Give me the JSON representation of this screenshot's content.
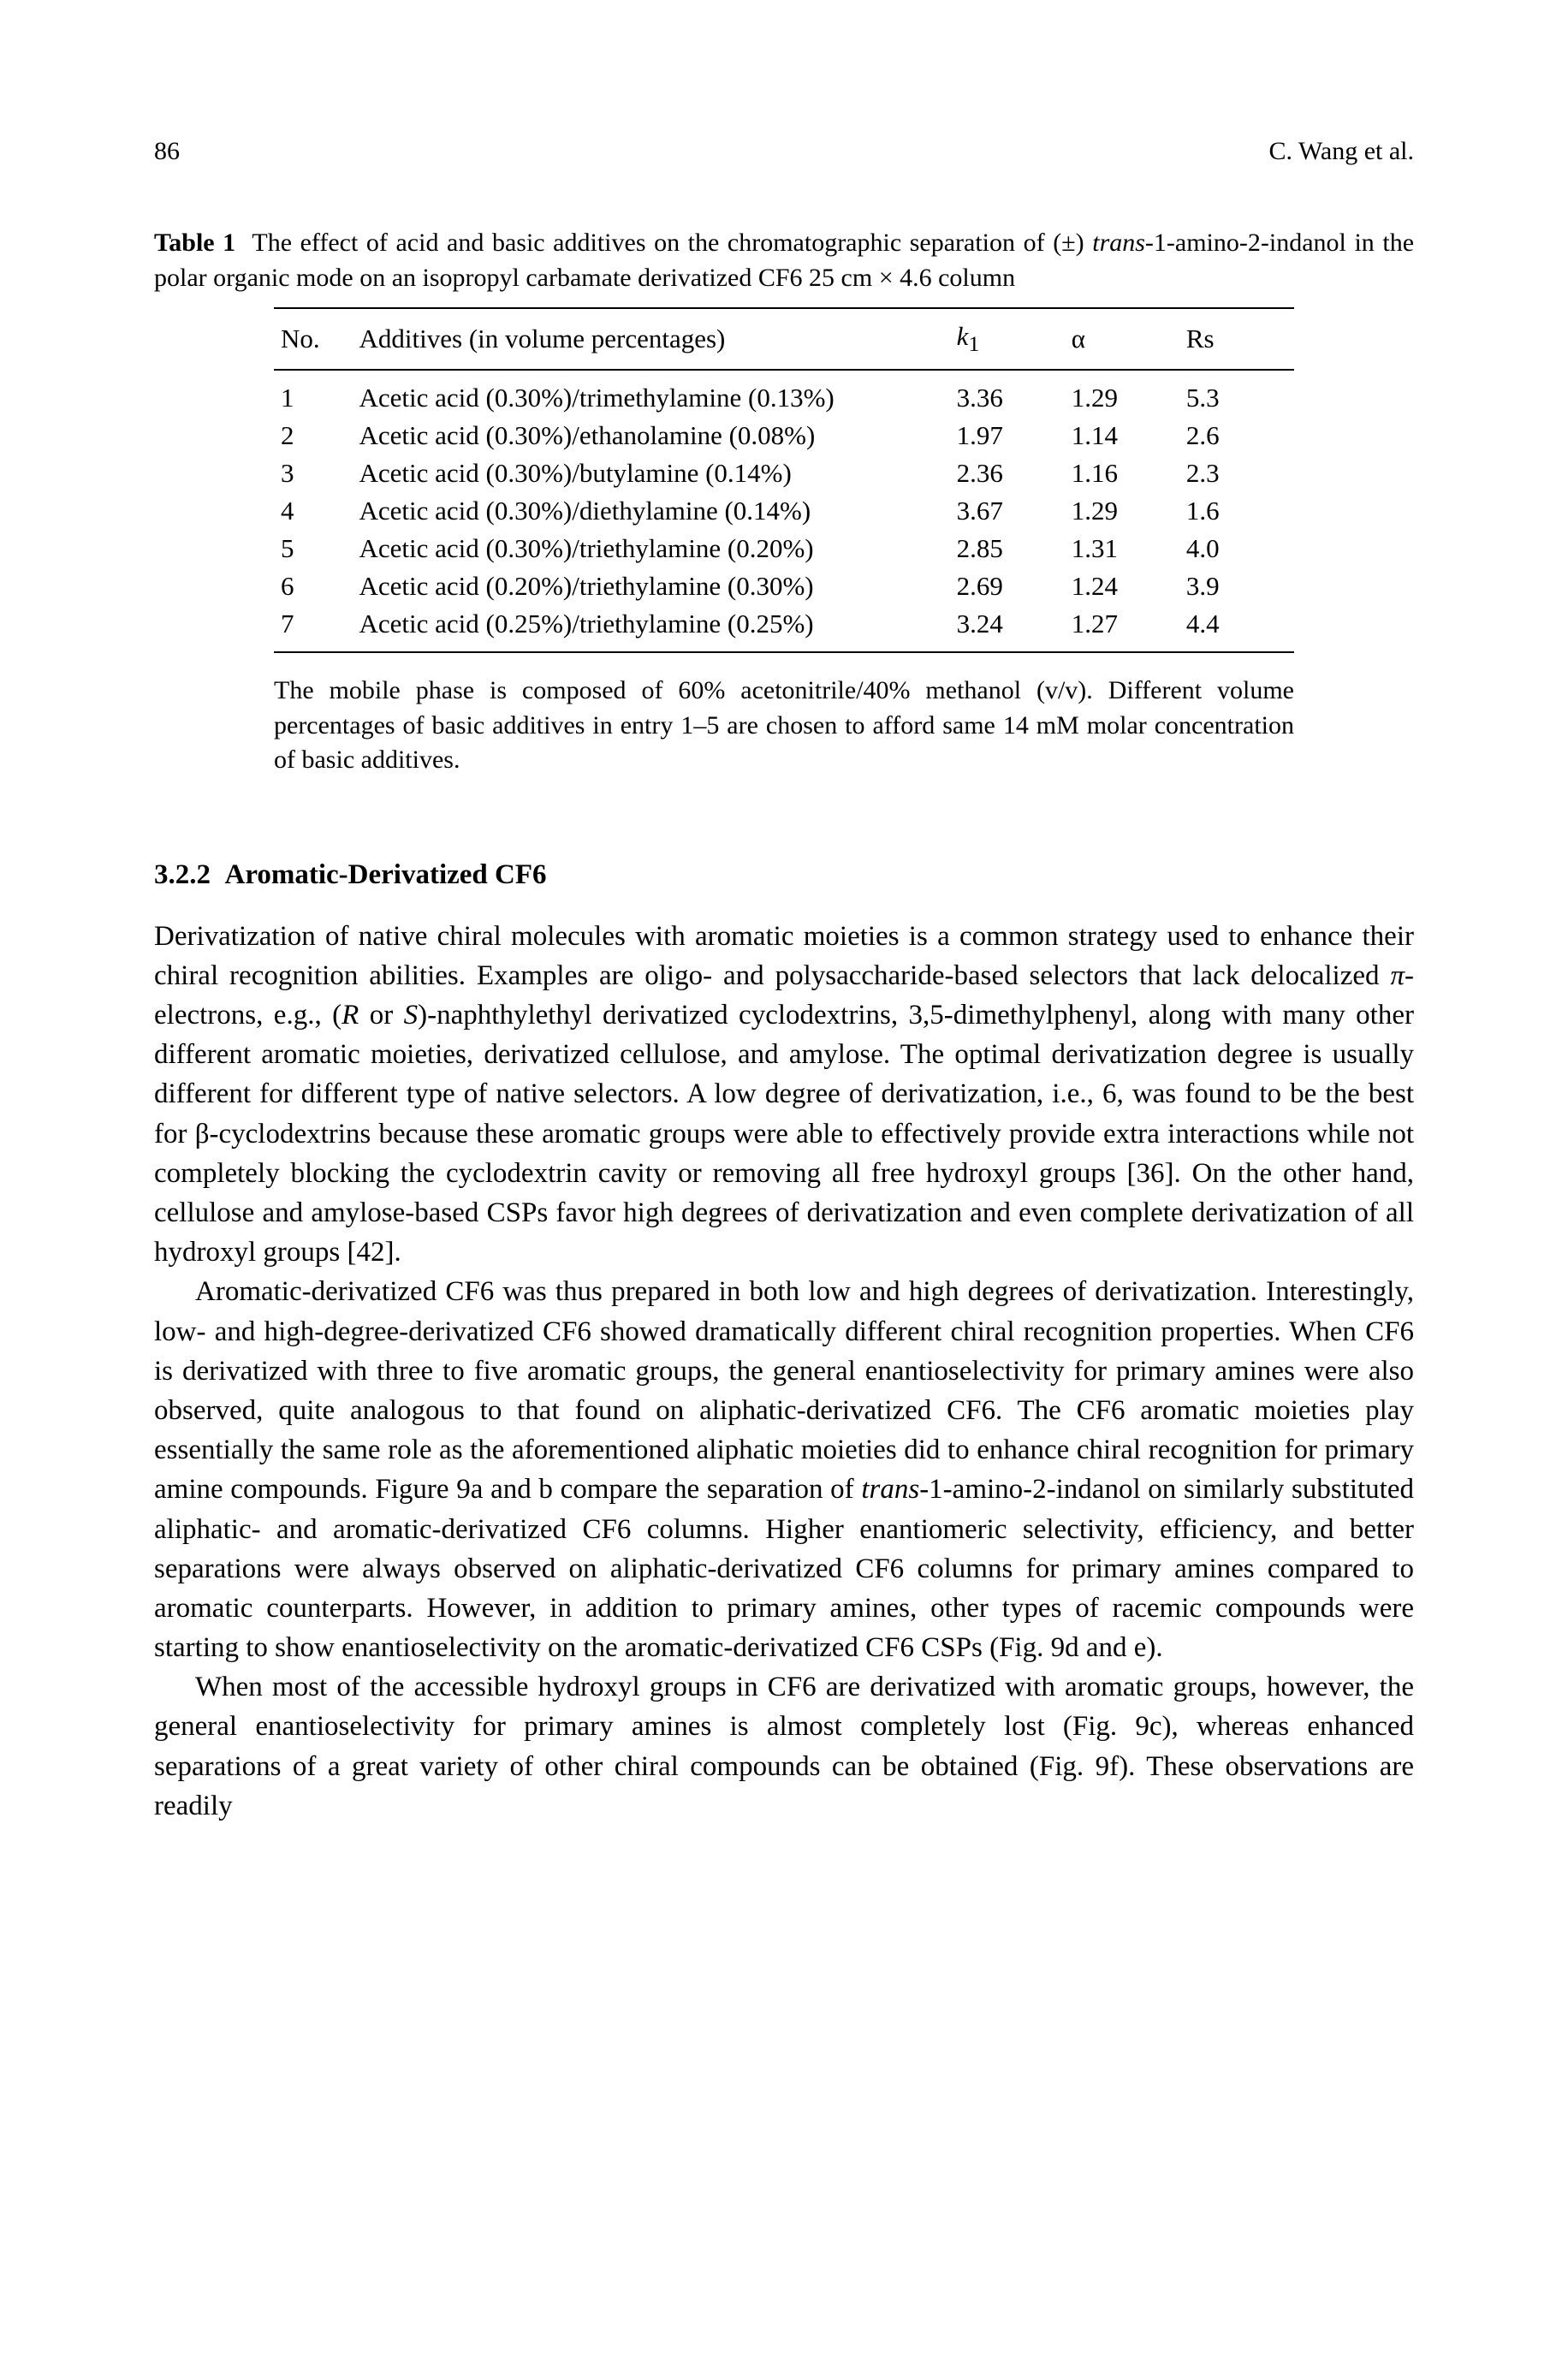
{
  "header": {
    "page_number": "86",
    "running_head": "C. Wang et al."
  },
  "table": {
    "label": "Table 1",
    "caption_html": "The effect of acid and basic additives on the chromatographic separation of (±) <span class=\"italic\">trans</span>-1-amino-2-indanol in the polar organic mode on an isopropyl carbamate derivatized CF6  25 cm × 4.6 column",
    "columns": {
      "no": "No.",
      "additives": "Additives (in volume percentages)",
      "k1_html": "<span class=\"italic\">k</span><sub>1</sub>",
      "alpha": "α",
      "rs": "Rs"
    },
    "rows": [
      {
        "no": "1",
        "add": "Acetic acid (0.30%)/trimethylamine (0.13%)",
        "k1": "3.36",
        "a": "1.29",
        "rs": "5.3"
      },
      {
        "no": "2",
        "add": "Acetic acid (0.30%)/ethanolamine (0.08%)",
        "k1": "1.97",
        "a": "1.14",
        "rs": "2.6"
      },
      {
        "no": "3",
        "add": "Acetic acid (0.30%)/butylamine (0.14%)",
        "k1": "2.36",
        "a": "1.16",
        "rs": "2.3"
      },
      {
        "no": "4",
        "add": "Acetic acid (0.30%)/diethylamine (0.14%)",
        "k1": "3.67",
        "a": "1.29",
        "rs": "1.6"
      },
      {
        "no": "5",
        "add": "Acetic acid (0.30%)/triethylamine (0.20%)",
        "k1": "2.85",
        "a": "1.31",
        "rs": "4.0"
      },
      {
        "no": "6",
        "add": "Acetic acid (0.20%)/triethylamine (0.30%)",
        "k1": "2.69",
        "a": "1.24",
        "rs": "3.9"
      },
      {
        "no": "7",
        "add": "Acetic acid (0.25%)/triethylamine (0.25%)",
        "k1": "3.24",
        "a": "1.27",
        "rs": "4.4"
      }
    ],
    "note": "The mobile phase is composed of 60% acetonitrile/40% methanol (v/v). Different volume percentages of basic additives in entry 1–5 are chosen to afford same 14 mM molar concentration of basic additives."
  },
  "section": {
    "number": "3.2.2",
    "title": "Aromatic-Derivatized CF6"
  },
  "paragraphs": [
    "Derivatization of native chiral molecules with aromatic moieties is a common strategy used to enhance their chiral recognition abilities. Examples are oligo- and polysaccharide-based selectors that lack delocalized <span class=\"italic\">π</span>-electrons, e.g., (<span class=\"italic\">R</span> or <span class=\"italic\">S</span>)-naphthylethyl derivatized cyclodextrins, 3,5-dimethylphenyl, along with many other different aromatic moieties, derivatized cellulose, and amylose. The optimal derivatization degree is usually different for different type of native selectors. A low degree of derivatization, i.e., 6, was found to be the best for β-cyclodextrins because these aromatic groups were able to effectively provide extra interactions while not completely blocking the cyclodextrin cavity or removing all free hydroxyl groups [36]. On the other hand, cellulose and amylose-based CSPs favor high degrees of derivatization and even complete derivatization of all hydroxyl groups [42].",
    "Aromatic-derivatized CF6 was thus prepared in both low and high degrees of derivatization. Interestingly, low- and high-degree-derivatized CF6 showed dramatically different chiral recognition properties. When CF6 is derivatized with three to five aromatic groups, the general enantioselectivity for primary amines were also observed, quite analogous to that found on aliphatic-derivatized CF6. The CF6 aromatic moieties play essentially the same role as the aforementioned aliphatic moieties did to enhance chiral recognition for primary amine compounds. Figure 9a and b compare the separation of <span class=\"italic\">trans</span>-1-amino-2-indanol on similarly substituted aliphatic- and aromatic-derivatized CF6 columns. Higher enantiomeric selectivity, efficiency, and better separations were always observed on aliphatic-derivatized CF6 columns for primary amines compared to aromatic counterparts. However, in addition to primary amines, other types of racemic compounds were starting to show enantioselectivity on the aromatic-derivatized CF6 CSPs (Fig. 9d and e).",
    "When most of the accessible hydroxyl groups in CF6 are derivatized with aromatic groups, however, the general enantioselectivity for primary amines is almost completely lost (Fig. 9c), whereas enhanced separations of a great variety of other chiral compounds can be obtained (Fig. 9f). These observations are readily"
  ]
}
